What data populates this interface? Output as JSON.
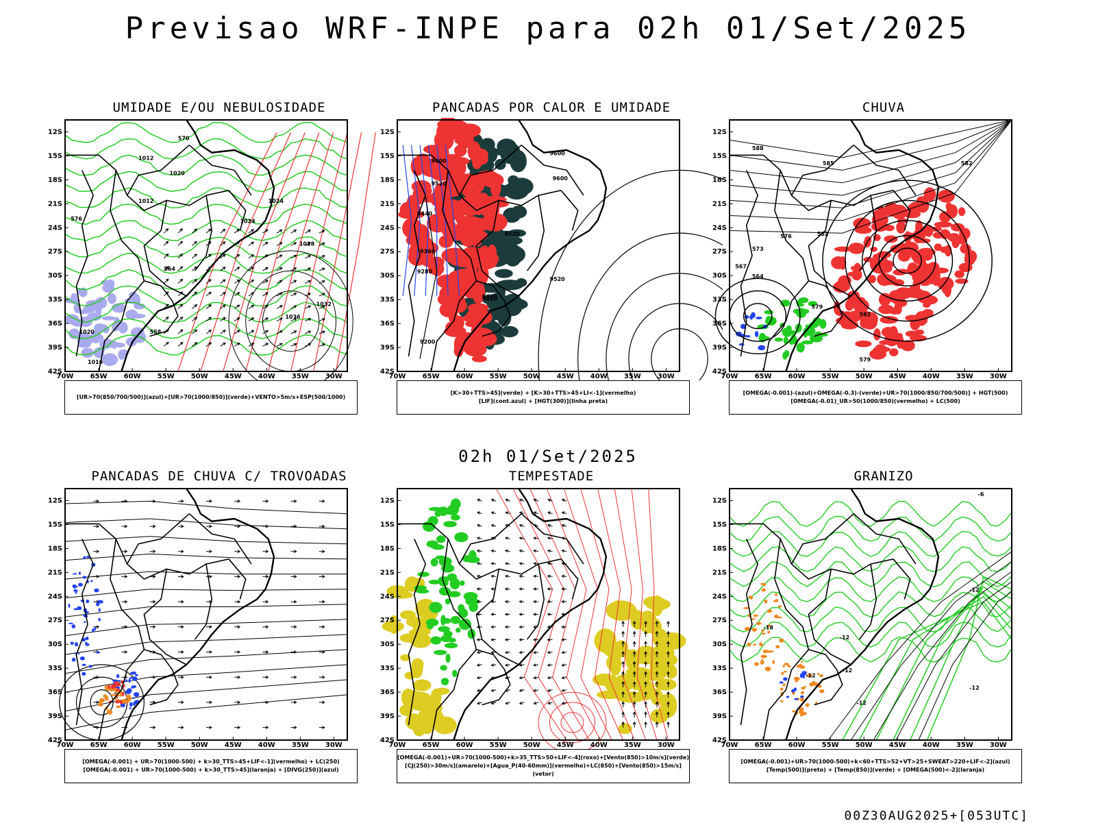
{
  "title": "Previsao WRF-INPE  para 02h 01/Set/2025",
  "subtitle": "02h 01/Set/2025",
  "footer": "00Z30AUG2025+[053UTC]",
  "colors": {
    "green": "#22cc22",
    "red": "#ee3333",
    "blue": "#2244ee",
    "lavender": "#aaaaee",
    "darkteal": "#1c3c3c",
    "yellow": "#ddcc22",
    "orange": "#ee8822",
    "black": "#000000"
  },
  "chart_data": [
    {
      "type": "heatmap",
      "title": "UMIDADE E/OU NEBULOSIDADE",
      "legend": [
        "[UR>70(850/700/500)](azul)+[UR>70(1000/850)](verde)+VENTO>5m/s+ESP(500/1000)"
      ],
      "xlabel": "",
      "ylabel": "",
      "xlim": [
        -70,
        -28
      ],
      "ylim": [
        -42,
        -10.5
      ],
      "xticks": [
        "70W",
        "65W",
        "60W",
        "55W",
        "50W",
        "45W",
        "40W",
        "35W",
        "30W"
      ],
      "yticks": [
        "12S",
        "15S",
        "18S",
        "21S",
        "24S",
        "27S",
        "30S",
        "33S",
        "36S",
        "39S",
        "42S"
      ],
      "contour_labels": [
        "1012",
        "1012",
        "1016",
        "1020",
        "1024",
        "1028",
        "1032",
        "1036",
        "1020",
        "1024",
        "570",
        "576",
        "558",
        "564"
      ]
    },
    {
      "type": "heatmap",
      "title": "PANCADAS POR CALOR E UMIDADE",
      "legend": [
        "[K>30+TTS>45](verde) + [K>30+TTS>45+LI<-1](vermelho)",
        "[LIF](cont.azul) + [HGT(300)](linha preta)"
      ],
      "xlabel": "",
      "ylabel": "",
      "xlim": [
        -70,
        -28
      ],
      "ylim": [
        -42,
        -10.5
      ],
      "xticks": [
        "70W",
        "65W",
        "60W",
        "55W",
        "50W",
        "45W",
        "40W",
        "35W",
        "30W"
      ],
      "yticks": [
        "12S",
        "15S",
        "18S",
        "21S",
        "24S",
        "27S",
        "30S",
        "33S",
        "36S",
        "39S",
        "42S"
      ],
      "contour_labels": [
        "9600",
        "9600",
        "9600",
        "9520",
        "9520",
        "9440",
        "9440",
        "9360",
        "9280",
        "9200",
        "9520",
        "9440"
      ]
    },
    {
      "type": "heatmap",
      "title": "CHUVA",
      "legend": [
        "[OMEGA(-0.001)-(azul)+OMEGA(-0.3)-(verde)+UR>70(1000/850/700/500)] + HGT(500)",
        "[OMEGA(-0.01)_UR>50(1000/850)(vermelho) + LC(500)"
      ],
      "xlabel": "",
      "ylabel": "",
      "xlim": [
        -70,
        -28
      ],
      "ylim": [
        -42,
        -10.5
      ],
      "xticks": [
        "70W",
        "65W",
        "60W",
        "55W",
        "50W",
        "45W",
        "40W",
        "35W",
        "30W"
      ],
      "yticks": [
        "12S",
        "15S",
        "18S",
        "21S",
        "24S",
        "27S",
        "30S",
        "33S",
        "36S",
        "39S",
        "42S"
      ],
      "contour_labels": [
        "588",
        "585",
        "582",
        "582",
        "576",
        "573",
        "567",
        "564",
        "579",
        "582",
        "579"
      ]
    },
    {
      "type": "heatmap",
      "title": "PANCADAS DE CHUVA C/ TROVOADAS",
      "legend": [
        "[OMEGA(-0.001) + UR>70(1000-500) + k>30_TTS>45+LIF<-1](vermelho) + LC(250)",
        "[OMEGA(-0.001) + UR>70(1000-500) + k>30_TTS>45](laranja) + [DIVG(250)](azul)"
      ],
      "xlabel": "",
      "ylabel": "",
      "xlim": [
        -70,
        -28
      ],
      "ylim": [
        -42,
        -10.5
      ],
      "xticks": [
        "70W",
        "65W",
        "60W",
        "55W",
        "50W",
        "45W",
        "40W",
        "35W",
        "30W"
      ],
      "yticks": [
        "12S",
        "15S",
        "18S",
        "21S",
        "24S",
        "27S",
        "30S",
        "33S",
        "36S",
        "39S",
        "42S"
      ],
      "contour_labels": []
    },
    {
      "type": "heatmap",
      "title": "TEMPESTADE",
      "legend": [
        "[OMEGA(-0.001)+UR>70(1000-500)+k>35_TTS>50+LIF<-4](roxo)+[Vento(850)>10m/s](verde)",
        "[CJ(250)>30m/s](amarelo)+[Agua_P(40-60mm)](vermelho)+LC(850)+[Vento(850)>15m/s](vetor)"
      ],
      "xlabel": "",
      "ylabel": "",
      "xlim": [
        -70,
        -28
      ],
      "ylim": [
        -42,
        -10.5
      ],
      "xticks": [
        "70W",
        "65W",
        "60W",
        "55W",
        "50W",
        "45W",
        "40W",
        "35W",
        "30W"
      ],
      "yticks": [
        "12S",
        "15S",
        "18S",
        "21S",
        "24S",
        "27S",
        "30S",
        "33S",
        "36S",
        "39S",
        "42S"
      ],
      "contour_labels": []
    },
    {
      "type": "heatmap",
      "title": "GRANIZO",
      "legend": [
        "[OMEGA(-0.001)+UR>70(1000-500)+k<60+TTS>52+VT>25+SWEAT>220+LIF<-2](azul)",
        "[Temp(500)](preto) + [Temp(850)](verde) + [OMEGA(500)<-2](laranja)"
      ],
      "xlabel": "",
      "ylabel": "",
      "xlim": [
        -70,
        -28
      ],
      "ylim": [
        -42,
        -10.5
      ],
      "xticks": [
        "70W",
        "65W",
        "60W",
        "55W",
        "50W",
        "45W",
        "40W",
        "35W",
        "30W"
      ],
      "yticks": [
        "12S",
        "15S",
        "18S",
        "21S",
        "24S",
        "27S",
        "30S",
        "33S",
        "36S",
        "39S",
        "42S"
      ],
      "contour_labels": [
        "-6",
        "-12",
        "-12",
        "-12",
        "-12",
        "-12",
        "-18",
        "-12"
      ]
    }
  ]
}
